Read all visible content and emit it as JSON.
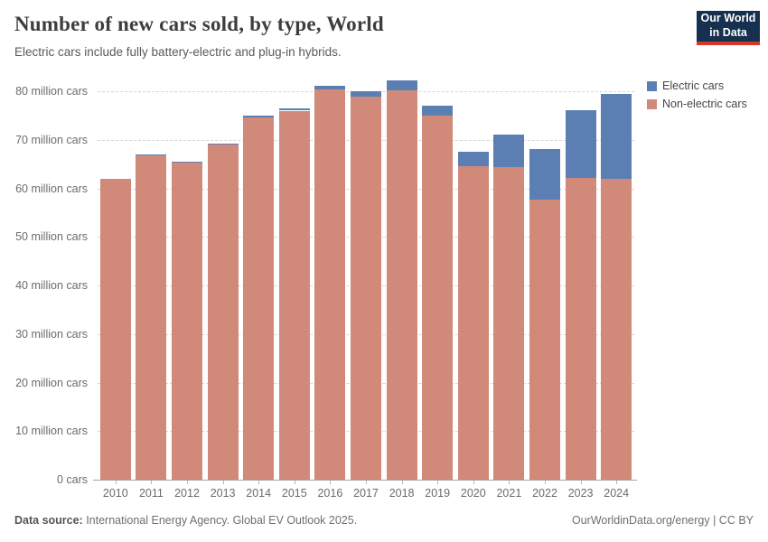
{
  "header": {
    "title": "Number of new cars sold, by type, World",
    "subtitle": "Electric cars include fully battery-electric and plug-in hybrids."
  },
  "logo": {
    "line1": "Our World",
    "line2": "in Data",
    "bg_color": "#16304f",
    "accent_color": "#d8352a"
  },
  "legend": {
    "items": [
      {
        "label": "Electric cars",
        "color": "#5b7fb2"
      },
      {
        "label": "Non-electric cars",
        "color": "#d18a79"
      }
    ]
  },
  "chart_data": {
    "type": "bar",
    "stacked": true,
    "title": "Number of new cars sold, by type, World",
    "subtitle": "Electric cars include fully battery-electric and plug-in hybrids.",
    "categories": [
      "2010",
      "2011",
      "2012",
      "2013",
      "2014",
      "2015",
      "2016",
      "2017",
      "2018",
      "2019",
      "2020",
      "2021",
      "2022",
      "2023",
      "2024"
    ],
    "series": [
      {
        "name": "Electric cars",
        "color": "#5b7fb2",
        "values": [
          0.01,
          0.05,
          0.12,
          0.2,
          0.35,
          0.55,
          0.75,
          1.2,
          2.0,
          2.1,
          3.0,
          6.6,
          10.5,
          13.9,
          17.5
        ]
      },
      {
        "name": "Non-electric cars",
        "color": "#d18a79",
        "values": [
          62.0,
          67.0,
          65.4,
          69.1,
          74.6,
          76.0,
          80.4,
          78.8,
          80.2,
          74.9,
          64.5,
          64.4,
          57.6,
          62.2,
          62.0
        ]
      }
    ],
    "xlabel": "",
    "ylabel": "",
    "ylim": [
      0,
      80
    ],
    "ytick_interval": 10,
    "ytick_label_format": "{v} million cars",
    "ytick_zero_label": "0 cars",
    "grid": true,
    "gridline_color": "#d7d7d7",
    "legend_position": "right"
  },
  "footer": {
    "source_label": "Data source:",
    "source_text": " International Energy Agency. Global EV Outlook 2025.",
    "credit": "OurWorldinData.org/energy | CC BY"
  }
}
